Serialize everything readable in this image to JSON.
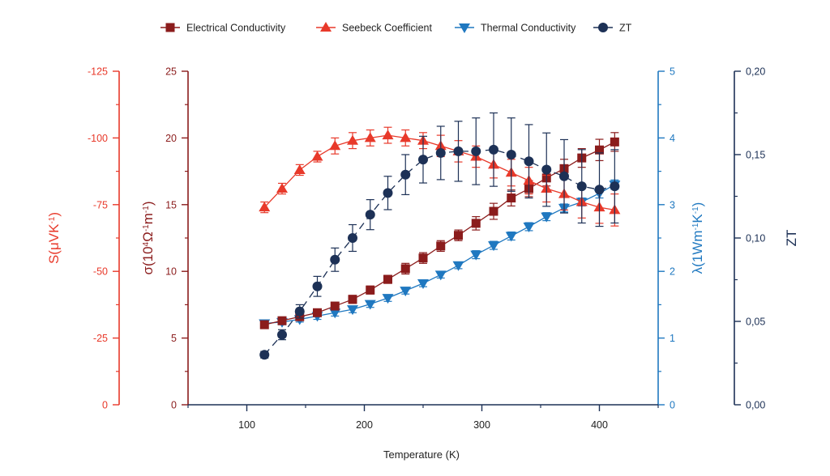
{
  "chart_data": {
    "type": "line",
    "xlabel": "Temperature (K)",
    "xlim": [
      50,
      450
    ],
    "x_ticks": [
      "100",
      "200",
      "300",
      "400"
    ],
    "grid": false,
    "legend_position": "top",
    "colors": {
      "electrical": "#8b1c1c",
      "seebeck": "#e8392a",
      "thermal": "#1f78c0",
      "zt": "#1d3156"
    },
    "axes": {
      "seebeck": {
        "label_main": "S(μVK",
        "label_sup": "-1",
        "label_end": ")",
        "ticks": [
          "-125",
          "-100",
          "-75",
          "-50",
          "-25",
          "0"
        ]
      },
      "electrical": {
        "label_main": "σ(10",
        "label_sup1": "4",
        "label_mid": "Ω",
        "label_sup2": "-1",
        "label_mid2": "m",
        "label_sup3": "-1",
        "label_end": ")",
        "ticks": [
          "25",
          "20",
          "15",
          "10",
          "5",
          "0"
        ]
      },
      "thermal": {
        "label_main": "λ(1Wm",
        "label_sup1": "-1",
        "label_mid": "K",
        "label_sup2": "-1",
        "label_end": ")",
        "ticks": [
          "5",
          "4",
          "3",
          "2",
          "1",
          "0"
        ]
      },
      "zt": {
        "label": "ZT",
        "ticks": [
          "0,20",
          "0,15",
          "0,10",
          "0,05",
          "0,00"
        ]
      }
    },
    "x": [
      115,
      130,
      145,
      160,
      175,
      190,
      205,
      220,
      235,
      250,
      265,
      280,
      295,
      310,
      325,
      340,
      355,
      370,
      385,
      400,
      413
    ],
    "series": [
      {
        "name": "Electrical Conductivity",
        "axis": "electrical",
        "marker": "square",
        "ylim": [
          0,
          25
        ],
        "values": [
          6.0,
          6.3,
          6.6,
          6.9,
          7.4,
          7.9,
          8.6,
          9.4,
          10.2,
          11.0,
          11.9,
          12.7,
          13.6,
          14.5,
          15.5,
          16.2,
          17.0,
          17.7,
          18.5,
          19.1,
          19.7
        ],
        "errors": [
          0.2,
          0.2,
          0.2,
          0.2,
          0.25,
          0.3,
          0.3,
          0.3,
          0.4,
          0.4,
          0.4,
          0.4,
          0.5,
          0.6,
          0.6,
          0.6,
          0.6,
          0.7,
          0.7,
          0.8,
          0.7
        ]
      },
      {
        "name": "Seebeck Coefficient",
        "axis": "seebeck",
        "marker": "triangle-up",
        "ylim": [
          0,
          -125
        ],
        "values": [
          -74,
          -81,
          -88,
          -93,
          -97,
          -99,
          -100,
          -101,
          -100,
          -99,
          -97,
          -95,
          -93,
          -90,
          -87,
          -84,
          -81,
          -79,
          -76,
          -74,
          -73
        ],
        "errors": [
          2,
          2,
          2,
          2,
          3,
          3,
          3,
          3,
          3,
          3,
          4,
          4,
          4,
          5,
          5,
          5,
          5,
          6,
          6,
          6,
          6
        ]
      },
      {
        "name": "Thermal Conductivity",
        "axis": "thermal",
        "marker": "triangle-down",
        "ylim": [
          0,
          5
        ],
        "values": [
          1.22,
          1.24,
          1.28,
          1.33,
          1.38,
          1.43,
          1.51,
          1.6,
          1.71,
          1.82,
          1.95,
          2.09,
          2.25,
          2.39,
          2.53,
          2.67,
          2.82,
          2.95,
          3.04,
          3.17,
          3.3
        ],
        "errors": [
          0.04,
          0.04,
          0.04,
          0.05,
          0.05,
          0.05,
          0.05,
          0.05,
          0.05,
          0.05,
          0.05,
          0.05,
          0.06,
          0.06,
          0.06,
          0.06,
          0.06,
          0.06,
          0.06,
          0.07,
          0.07
        ]
      },
      {
        "name": "ZT",
        "axis": "zt",
        "marker": "circle",
        "ylim": [
          0,
          0.2
        ],
        "values": [
          0.03,
          0.042,
          0.056,
          0.071,
          0.087,
          0.1,
          0.114,
          0.127,
          0.138,
          0.147,
          0.151,
          0.152,
          0.152,
          0.153,
          0.15,
          0.146,
          0.141,
          0.137,
          0.131,
          0.129,
          0.131
        ],
        "errors": [
          0.002,
          0.003,
          0.004,
          0.006,
          0.007,
          0.008,
          0.009,
          0.01,
          0.012,
          0.014,
          0.016,
          0.018,
          0.02,
          0.022,
          0.022,
          0.022,
          0.022,
          0.022,
          0.022,
          0.022,
          0.022
        ]
      }
    ]
  }
}
